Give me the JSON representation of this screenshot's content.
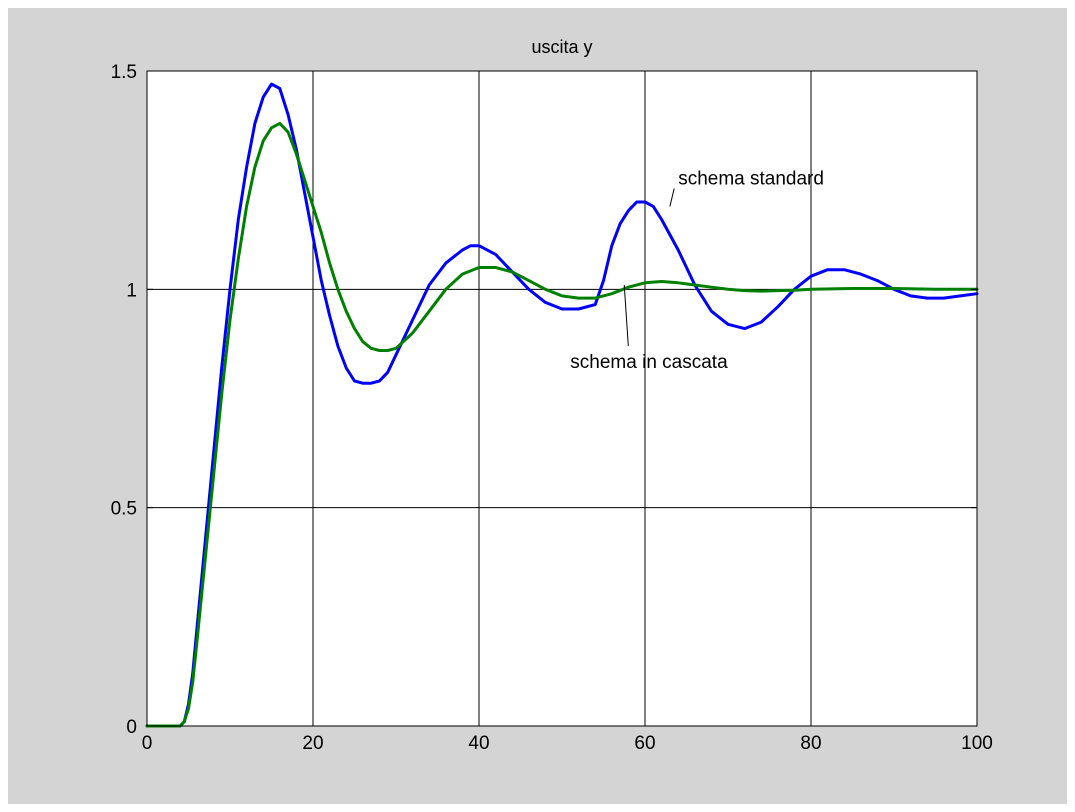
{
  "colors": {
    "figure_background": "#d4d4d4",
    "axes_background": "#ffffff",
    "grid": "#000000",
    "series_standard": "#0000ff",
    "series_cascade": "#008000"
  },
  "chart_data": {
    "type": "line",
    "title": "uscita y",
    "xlabel": "",
    "ylabel": "",
    "xlim": [
      0,
      100
    ],
    "ylim": [
      0,
      1.5
    ],
    "xticks": [
      0,
      20,
      40,
      60,
      80,
      100
    ],
    "yticks": [
      0,
      0.5,
      1,
      1.5
    ],
    "xtick_labels": [
      "0",
      "20",
      "40",
      "60",
      "80",
      "100"
    ],
    "ytick_labels": [
      "0",
      "0.5",
      "1",
      "1.5"
    ],
    "grid": true,
    "series": [
      {
        "color": "#0000ff",
        "x": [
          0,
          4,
          4.5,
          5,
          5.5,
          6,
          7,
          8,
          9,
          10,
          11,
          12,
          13,
          14,
          15,
          16,
          17,
          18,
          19,
          20,
          21,
          22,
          23,
          24,
          25,
          26,
          27,
          28,
          29,
          30,
          32,
          34,
          36,
          38,
          39,
          40,
          42,
          44,
          46,
          48,
          50,
          52,
          54,
          55,
          56,
          57,
          58,
          59,
          60,
          61,
          62,
          64,
          66,
          68,
          70,
          72,
          74,
          76,
          78,
          80,
          82,
          84,
          86,
          88,
          90,
          92,
          94,
          96,
          98,
          100
        ],
        "values": [
          0,
          0,
          0.01,
          0.05,
          0.12,
          0.22,
          0.42,
          0.62,
          0.82,
          1.0,
          1.16,
          1.28,
          1.38,
          1.44,
          1.47,
          1.46,
          1.4,
          1.32,
          1.22,
          1.12,
          1.02,
          0.94,
          0.87,
          0.82,
          0.79,
          0.785,
          0.785,
          0.79,
          0.81,
          0.85,
          0.93,
          1.01,
          1.06,
          1.09,
          1.1,
          1.1,
          1.08,
          1.04,
          1.0,
          0.97,
          0.955,
          0.955,
          0.965,
          1.02,
          1.1,
          1.15,
          1.18,
          1.2,
          1.2,
          1.19,
          1.16,
          1.09,
          1.01,
          0.95,
          0.92,
          0.91,
          0.925,
          0.96,
          1.0,
          1.03,
          1.045,
          1.045,
          1.035,
          1.02,
          1.0,
          0.985,
          0.98,
          0.98,
          0.985,
          0.99
        ]
      },
      {
        "color": "#008000",
        "x": [
          0,
          4,
          4.5,
          5,
          5.5,
          6,
          7,
          8,
          9,
          10,
          11,
          12,
          13,
          14,
          15,
          16,
          17,
          18,
          19,
          20,
          21,
          22,
          23,
          24,
          25,
          26,
          27,
          28,
          29,
          30,
          32,
          34,
          36,
          38,
          40,
          42,
          44,
          46,
          48,
          50,
          52,
          54,
          56,
          58,
          60,
          62,
          64,
          66,
          68,
          70,
          72,
          74,
          76,
          78,
          80,
          85,
          90,
          95,
          100
        ],
        "values": [
          0,
          0,
          0.01,
          0.04,
          0.1,
          0.19,
          0.38,
          0.57,
          0.76,
          0.93,
          1.07,
          1.19,
          1.28,
          1.34,
          1.37,
          1.38,
          1.36,
          1.31,
          1.25,
          1.19,
          1.13,
          1.06,
          1.0,
          0.95,
          0.91,
          0.88,
          0.865,
          0.86,
          0.86,
          0.865,
          0.9,
          0.95,
          1.0,
          1.035,
          1.05,
          1.05,
          1.04,
          1.02,
          1.0,
          0.985,
          0.98,
          0.98,
          0.99,
          1.005,
          1.015,
          1.018,
          1.015,
          1.01,
          1.005,
          1.0,
          0.997,
          0.996,
          0.997,
          0.998,
          1.0,
          1.002,
          1.002,
          1.0,
          1.0
        ]
      }
    ],
    "annotations": [
      {
        "text": "schema standard",
        "x": 64,
        "y": 1.24,
        "target_x": 63,
        "target_y": 1.19
      },
      {
        "text": "schema in cascata",
        "x": 51,
        "y": 0.82,
        "target_x": 57.5,
        "target_y": 1.01
      }
    ]
  }
}
